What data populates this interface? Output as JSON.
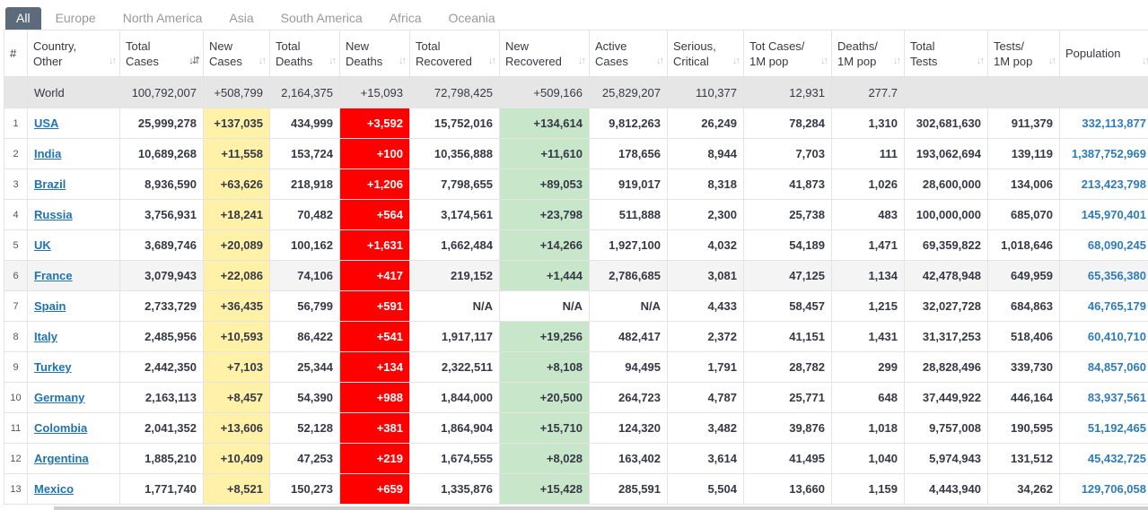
{
  "tabs": [
    "All",
    "Europe",
    "North America",
    "Asia",
    "South America",
    "Africa",
    "Oceania"
  ],
  "headers": [
    "#",
    "Country,\nOther",
    "Total\nCases",
    "New\nCases",
    "Total\nDeaths",
    "New\nDeaths",
    "Total\nRecovered",
    "New\nRecovered",
    "Active\nCases",
    "Serious,\nCritical",
    "Tot Cases/\n1M pop",
    "Deaths/\n1M pop",
    "Total\nTests",
    "Tests/\n1M pop",
    "Population"
  ],
  "sort_icon": "sort-arrows-icon",
  "world": {
    "country": "World",
    "total_cases": "100,792,007",
    "new_cases": "+508,799",
    "total_deaths": "2,164,375",
    "new_deaths": "+15,093",
    "total_recovered": "72,798,425",
    "new_recovered": "+509,166",
    "active": "25,829,207",
    "serious": "110,377",
    "cases_per_m": "12,931",
    "deaths_per_m": "277.7",
    "tests": "",
    "tests_per_m": "",
    "population": ""
  },
  "rows": [
    {
      "idx": "1",
      "country": "USA",
      "total_cases": "25,999,278",
      "new_cases": "+137,035",
      "total_deaths": "434,999",
      "new_deaths": "+3,592",
      "total_recovered": "15,752,016",
      "new_recovered": "+134,614",
      "active": "9,812,263",
      "serious": "26,249",
      "cases_per_m": "78,284",
      "deaths_per_m": "1,310",
      "tests": "302,681,630",
      "tests_per_m": "911,379",
      "population": "332,113,877"
    },
    {
      "idx": "2",
      "country": "India",
      "total_cases": "10,689,268",
      "new_cases": "+11,558",
      "total_deaths": "153,724",
      "new_deaths": "+100",
      "total_recovered": "10,356,888",
      "new_recovered": "+11,610",
      "active": "178,656",
      "serious": "8,944",
      "cases_per_m": "7,703",
      "deaths_per_m": "111",
      "tests": "193,062,694",
      "tests_per_m": "139,119",
      "population": "1,387,752,969"
    },
    {
      "idx": "3",
      "country": "Brazil",
      "total_cases": "8,936,590",
      "new_cases": "+63,626",
      "total_deaths": "218,918",
      "new_deaths": "+1,206",
      "total_recovered": "7,798,655",
      "new_recovered": "+89,053",
      "active": "919,017",
      "serious": "8,318",
      "cases_per_m": "41,873",
      "deaths_per_m": "1,026",
      "tests": "28,600,000",
      "tests_per_m": "134,006",
      "population": "213,423,798"
    },
    {
      "idx": "4",
      "country": "Russia",
      "total_cases": "3,756,931",
      "new_cases": "+18,241",
      "total_deaths": "70,482",
      "new_deaths": "+564",
      "total_recovered": "3,174,561",
      "new_recovered": "+23,798",
      "active": "511,888",
      "serious": "2,300",
      "cases_per_m": "25,738",
      "deaths_per_m": "483",
      "tests": "100,000,000",
      "tests_per_m": "685,070",
      "population": "145,970,401"
    },
    {
      "idx": "5",
      "country": "UK",
      "total_cases": "3,689,746",
      "new_cases": "+20,089",
      "total_deaths": "100,162",
      "new_deaths": "+1,631",
      "total_recovered": "1,662,484",
      "new_recovered": "+14,266",
      "active": "1,927,100",
      "serious": "4,032",
      "cases_per_m": "54,189",
      "deaths_per_m": "1,471",
      "tests": "69,359,822",
      "tests_per_m": "1,018,646",
      "population": "68,090,245"
    },
    {
      "idx": "6",
      "country": "France",
      "total_cases": "3,079,943",
      "new_cases": "+22,086",
      "total_deaths": "74,106",
      "new_deaths": "+417",
      "total_recovered": "219,152",
      "new_recovered": "+1,444",
      "active": "2,786,685",
      "serious": "3,081",
      "cases_per_m": "47,125",
      "deaths_per_m": "1,134",
      "tests": "42,478,948",
      "tests_per_m": "649,959",
      "population": "65,356,380"
    },
    {
      "idx": "7",
      "country": "Spain",
      "total_cases": "2,733,729",
      "new_cases": "+36,435",
      "total_deaths": "56,799",
      "new_deaths": "+591",
      "total_recovered": "N/A",
      "new_recovered": "N/A",
      "active": "N/A",
      "serious": "4,433",
      "cases_per_m": "58,457",
      "deaths_per_m": "1,215",
      "tests": "32,027,728",
      "tests_per_m": "684,863",
      "population": "46,765,179"
    },
    {
      "idx": "8",
      "country": "Italy",
      "total_cases": "2,485,956",
      "new_cases": "+10,593",
      "total_deaths": "86,422",
      "new_deaths": "+541",
      "total_recovered": "1,917,117",
      "new_recovered": "+19,256",
      "active": "482,417",
      "serious": "2,372",
      "cases_per_m": "41,151",
      "deaths_per_m": "1,431",
      "tests": "31,317,253",
      "tests_per_m": "518,406",
      "population": "60,410,710"
    },
    {
      "idx": "9",
      "country": "Turkey",
      "total_cases": "2,442,350",
      "new_cases": "+7,103",
      "total_deaths": "25,344",
      "new_deaths": "+134",
      "total_recovered": "2,322,511",
      "new_recovered": "+8,108",
      "active": "94,495",
      "serious": "1,791",
      "cases_per_m": "28,782",
      "deaths_per_m": "299",
      "tests": "28,828,496",
      "tests_per_m": "339,730",
      "population": "84,857,060"
    },
    {
      "idx": "10",
      "country": "Germany",
      "total_cases": "2,163,113",
      "new_cases": "+8,457",
      "total_deaths": "54,390",
      "new_deaths": "+988",
      "total_recovered": "1,844,000",
      "new_recovered": "+20,500",
      "active": "264,723",
      "serious": "4,787",
      "cases_per_m": "25,771",
      "deaths_per_m": "648",
      "tests": "37,449,922",
      "tests_per_m": "446,164",
      "population": "83,937,561"
    },
    {
      "idx": "11",
      "country": "Colombia",
      "total_cases": "2,041,352",
      "new_cases": "+13,606",
      "total_deaths": "52,128",
      "new_deaths": "+381",
      "total_recovered": "1,864,904",
      "new_recovered": "+15,710",
      "active": "124,320",
      "serious": "3,482",
      "cases_per_m": "39,876",
      "deaths_per_m": "1,018",
      "tests": "9,757,008",
      "tests_per_m": "190,595",
      "population": "51,192,465"
    },
    {
      "idx": "12",
      "country": "Argentina",
      "total_cases": "1,885,210",
      "new_cases": "+10,409",
      "total_deaths": "47,253",
      "new_deaths": "+219",
      "total_recovered": "1,674,555",
      "new_recovered": "+8,028",
      "active": "163,402",
      "serious": "3,614",
      "cases_per_m": "41,495",
      "deaths_per_m": "1,040",
      "tests": "5,974,943",
      "tests_per_m": "131,512",
      "population": "45,432,725"
    },
    {
      "idx": "13",
      "country": "Mexico",
      "total_cases": "1,771,740",
      "new_cases": "+8,521",
      "total_deaths": "150,273",
      "new_deaths": "+659",
      "total_recovered": "1,335,876",
      "new_recovered": "+15,428",
      "active": "285,591",
      "serious": "5,504",
      "cases_per_m": "13,660",
      "deaths_per_m": "1,159",
      "tests": "4,443,940",
      "tests_per_m": "34,262",
      "population": "129,706,058"
    }
  ],
  "colors": {
    "tab_active": "#5b6b7a",
    "new_cases": "#fff1a8",
    "new_deaths": "#ff0000",
    "new_recovered": "#c8e6c9",
    "link": "#1f73b1",
    "world_row": "#e6e6e6"
  }
}
